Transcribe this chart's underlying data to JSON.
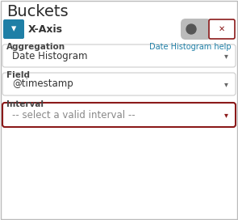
{
  "title": "Buckets",
  "xaxis_label": "X-Axis",
  "teal_color": "#1f7fa6",
  "x_btn_border_color": "#8b1a1a",
  "x_btn_text_color": "#8b1a1a",
  "aggregation_label": "Aggregation",
  "help_link": "Date Histogram help",
  "help_color": "#1f7fa6",
  "dropdown1_text": "Date Histogram",
  "field_label": "Field",
  "dropdown2_text": "@timestamp",
  "interval_label": "Interval",
  "dropdown3_text": "-- select a valid interval --",
  "dropdown3_border_color": "#8b1a1a",
  "normal_border_color": "#cccccc",
  "bg_color": "#ffffff",
  "text_color": "#333333",
  "label_bold_color": "#444444",
  "toggle_bg": "#bbbbbb",
  "toggle_knob": "#555555"
}
